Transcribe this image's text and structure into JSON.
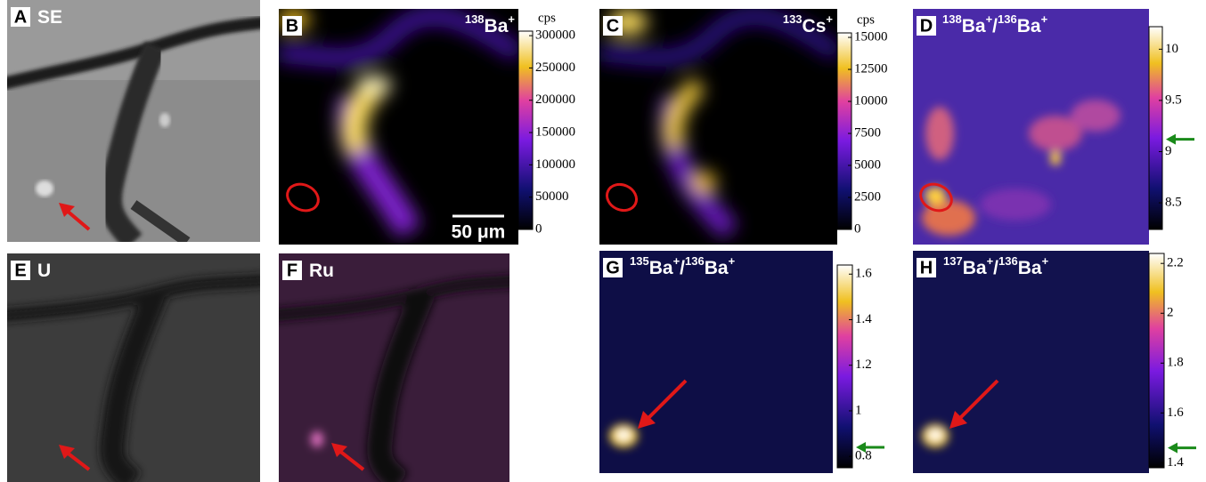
{
  "panels": [
    {
      "letter": "A",
      "label": [
        {
          "text": "SE"
        }
      ]
    },
    {
      "letter": "B",
      "label": [
        {
          "text": "138",
          "sup": true
        },
        {
          "text": "Ba"
        },
        {
          "text": "+",
          "sup": true
        }
      ],
      "colorbar": {
        "unit": "cps",
        "ylim": [
          0,
          307000
        ],
        "yticks": [
          0,
          50000,
          100000,
          150000,
          200000,
          250000,
          300000
        ]
      },
      "scale_bar": "50 μm"
    },
    {
      "letter": "C",
      "label": [
        {
          "text": "133",
          "sup": true
        },
        {
          "text": "Cs"
        },
        {
          "text": "+",
          "sup": true
        }
      ],
      "colorbar": {
        "unit": "cps",
        "ylim": [
          0,
          15350
        ],
        "yticks": [
          0,
          2500,
          5000,
          7500,
          10000,
          12500,
          15000
        ]
      }
    },
    {
      "letter": "D",
      "label": [
        {
          "text": "138",
          "sup": true
        },
        {
          "text": "Ba"
        },
        {
          "text": "+",
          "sup": true
        },
        {
          "text": "/"
        },
        {
          "text": "136",
          "sup": true
        },
        {
          "text": "Ba"
        },
        {
          "text": "+",
          "sup": true
        }
      ],
      "colorbar": {
        "ylim": [
          8.24,
          10.22
        ],
        "yticks": [
          8.5,
          9,
          9.5,
          10
        ],
        "marker": 9.12
      }
    },
    {
      "letter": "E",
      "label": [
        {
          "text": "U"
        }
      ]
    },
    {
      "letter": "F",
      "label": [
        {
          "text": "Ru"
        }
      ]
    },
    {
      "letter": "G",
      "label": [
        {
          "text": "135",
          "sup": true
        },
        {
          "text": "Ba"
        },
        {
          "text": "+",
          "sup": true
        },
        {
          "text": "/"
        },
        {
          "text": "136",
          "sup": true
        },
        {
          "text": "Ba"
        },
        {
          "text": "+",
          "sup": true
        }
      ],
      "colorbar": {
        "ylim": [
          0.75,
          1.64
        ],
        "yticks": [
          0.8,
          1,
          1.2,
          1.4,
          1.6
        ],
        "marker": 0.84
      }
    },
    {
      "letter": "H",
      "label": [
        {
          "text": "137",
          "sup": true
        },
        {
          "text": "Ba"
        },
        {
          "text": "+",
          "sup": true
        },
        {
          "text": "/"
        },
        {
          "text": "136",
          "sup": true
        },
        {
          "text": "Ba"
        },
        {
          "text": "+",
          "sup": true
        }
      ],
      "colorbar": {
        "ylim": [
          1.38,
          2.24
        ],
        "yticks": [
          1.4,
          1.6,
          1.8,
          2,
          2.2
        ],
        "marker": 1.46
      }
    }
  ]
}
